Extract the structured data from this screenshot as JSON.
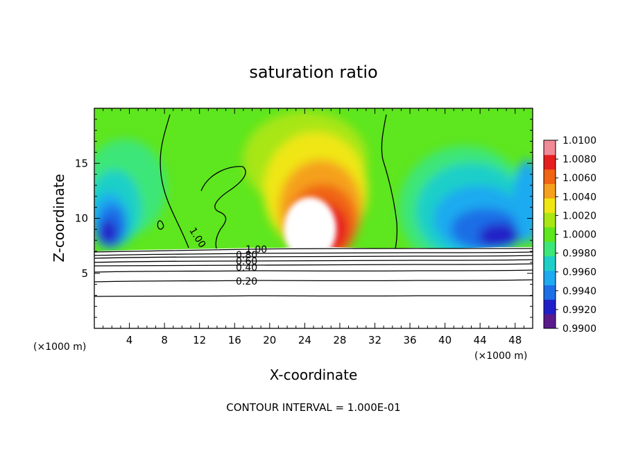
{
  "chart_data": {
    "type": "heatmap",
    "title": "saturation ratio",
    "xlabel": "X-coordinate",
    "ylabel": "Z-coordinate",
    "x_unit_left": "(×1000 m)",
    "x_unit_right": "(×1000 m)",
    "footer": "CONTOUR INTERVAL = 1.000E-01",
    "xlim": [
      0,
      50
    ],
    "ylim": [
      0,
      20
    ],
    "x_ticks": [
      "4",
      "8",
      "12",
      "16",
      "20",
      "24",
      "28",
      "32",
      "36",
      "40",
      "44",
      "48"
    ],
    "y_ticks": [
      "5",
      "10",
      "15"
    ],
    "colorbar": {
      "min": 0.99,
      "max": 1.01,
      "labels": [
        "1.0100",
        "1.0080",
        "1.0060",
        "1.0040",
        "1.0020",
        "1.0000",
        "0.9980",
        "0.9960",
        "0.9940",
        "0.9920",
        "0.9900"
      ],
      "colors": [
        "#5a1a8c",
        "#2020c8",
        "#1e6ee6",
        "#1eaaf0",
        "#1ecfc8",
        "#3ce678",
        "#5ee61e",
        "#a8e614",
        "#f0e614",
        "#f5a01e",
        "#f06414",
        "#e61e1e",
        "#f08a96"
      ]
    },
    "contour_labels": [
      "1.00",
      "1.00",
      "0.80",
      "0.60",
      "0.40",
      "0.20"
    ],
    "contour_levels": [
      0.2,
      0.3,
      0.4,
      0.5,
      0.6,
      0.7,
      0.8,
      0.9,
      1.0
    ]
  }
}
